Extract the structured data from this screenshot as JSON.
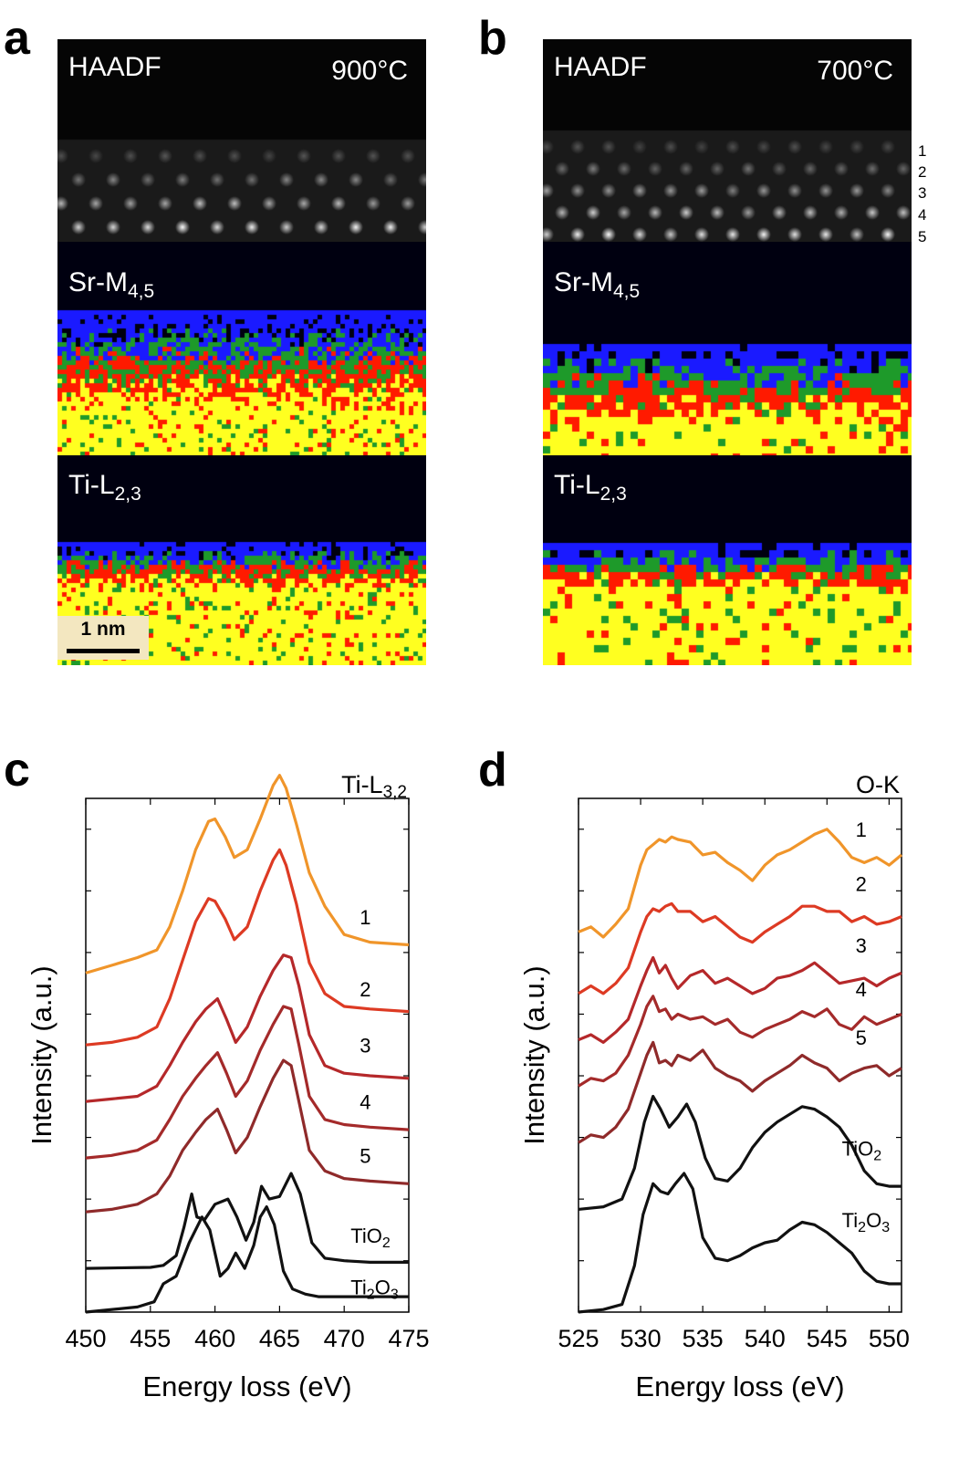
{
  "panels": {
    "a": {
      "letter": "a",
      "imaging_label": "HAADF",
      "temperature": "900°C",
      "sr_label": {
        "base": "Sr-M",
        "sub": "4,5"
      },
      "ti_label": {
        "base": "Ti-L",
        "sub": "2,3"
      },
      "scale_bar": "1 nm"
    },
    "b": {
      "letter": "b",
      "imaging_label": "HAADF",
      "temperature": "700°C",
      "sr_label": {
        "base": "Sr-M",
        "sub": "4,5"
      },
      "ti_label": {
        "base": "Ti-L",
        "sub": "2,3"
      },
      "layer_numbers": [
        "1",
        "2",
        "3",
        "4",
        "5"
      ]
    },
    "c": {
      "letter": "c"
    },
    "d": {
      "letter": "d"
    }
  },
  "colors": {
    "trace_1": "#f0952a",
    "trace_2": "#dd3a23",
    "trace_3": "#b5282a",
    "trace_4": "#a42a2a",
    "trace_5": "#8f2a2a",
    "reference": "#111111",
    "map_blue": "#1a1aff",
    "map_green": "#1e9a2a",
    "map_red": "#ff1a00",
    "map_yellow": "#ffff20"
  },
  "chart_data": [
    {
      "type": "line",
      "panel": "c",
      "title": "Ti-L",
      "title_sub": "3,2",
      "xlabel": "Energy loss (eV)",
      "ylabel": "Intensity (a.u.)",
      "xlim": [
        450,
        475
      ],
      "ylim": [
        0,
        10
      ],
      "xticks": [
        450,
        455,
        460,
        465,
        470,
        475
      ],
      "xtick_labels": [
        "450",
        "455",
        "460",
        "465",
        "470",
        "475"
      ],
      "series": [
        {
          "name": "1",
          "label": "1",
          "color_key": "trace_1",
          "offset": 6.6,
          "label_x": 471.2,
          "label_y": 7.55,
          "x": [
            450,
            452,
            454,
            455.5,
            456.5,
            457.5,
            458.5,
            459.5,
            460,
            460.8,
            461.5,
            462.5,
            463.5,
            464.5,
            465,
            465.5,
            466.3,
            467.3,
            468.5,
            470,
            472,
            475
          ],
          "y": [
            0,
            0.15,
            0.3,
            0.45,
            0.9,
            1.6,
            2.4,
            2.95,
            3.0,
            2.65,
            2.25,
            2.4,
            3.0,
            3.65,
            3.85,
            3.6,
            2.9,
            1.95,
            1.3,
            0.75,
            0.6,
            0.55
          ]
        },
        {
          "name": "2",
          "label": "2",
          "color_key": "trace_2",
          "offset": 5.2,
          "label_x": 471.2,
          "label_y": 6.15,
          "x": [
            450,
            452,
            454,
            455.5,
            456.5,
            457.5,
            458.5,
            459.5,
            460,
            460.8,
            461.5,
            462.5,
            463.5,
            464.5,
            465,
            465.5,
            466.3,
            467.3,
            468.5,
            470,
            472,
            475
          ],
          "y": [
            0,
            0.05,
            0.15,
            0.35,
            0.9,
            1.65,
            2.4,
            2.85,
            2.8,
            2.45,
            2.05,
            2.3,
            3.0,
            3.6,
            3.8,
            3.5,
            2.75,
            1.6,
            1.0,
            0.75,
            0.7,
            0.65
          ]
        },
        {
          "name": "3",
          "label": "3",
          "color_key": "trace_3",
          "offset": 4.1,
          "label_x": 471.2,
          "label_y": 5.05,
          "x": [
            450,
            452,
            454,
            455.5,
            456.5,
            457.5,
            458.5,
            459.3,
            460.2,
            460.9,
            461.6,
            462.5,
            463.5,
            464.5,
            465.3,
            465.9,
            466.5,
            467.3,
            468.5,
            470,
            472,
            475
          ],
          "y": [
            0,
            0.05,
            0.1,
            0.3,
            0.7,
            1.15,
            1.55,
            1.8,
            2.0,
            1.6,
            1.15,
            1.45,
            2.05,
            2.55,
            2.85,
            2.8,
            2.25,
            1.3,
            0.7,
            0.55,
            0.5,
            0.45
          ]
        },
        {
          "name": "4",
          "label": "4",
          "color_key": "trace_4",
          "offset": 3.0,
          "label_x": 471.2,
          "label_y": 3.95,
          "x": [
            450,
            452,
            454,
            455.5,
            456.5,
            457.5,
            458.5,
            459.3,
            460.2,
            460.9,
            461.6,
            462.5,
            463.5,
            464.5,
            465.3,
            465.9,
            466.5,
            467.3,
            468.5,
            470,
            472,
            475
          ],
          "y": [
            0,
            0.05,
            0.15,
            0.35,
            0.75,
            1.2,
            1.55,
            1.8,
            2.05,
            1.65,
            1.2,
            1.5,
            2.1,
            2.6,
            2.95,
            2.9,
            2.2,
            1.2,
            0.75,
            0.65,
            0.6,
            0.55
          ]
        },
        {
          "name": "5",
          "label": "5",
          "color_key": "trace_5",
          "offset": 1.95,
          "label_x": 471.2,
          "label_y": 2.9,
          "x": [
            450,
            452,
            454,
            455.5,
            456.5,
            457.5,
            458.5,
            459.3,
            460.2,
            460.9,
            461.6,
            462.5,
            463.5,
            464.5,
            465.3,
            465.9,
            466.5,
            467.3,
            468.5,
            470,
            472,
            475
          ],
          "y": [
            0,
            0.05,
            0.15,
            0.35,
            0.7,
            1.2,
            1.55,
            1.8,
            2.0,
            1.6,
            1.15,
            1.45,
            2.05,
            2.6,
            2.95,
            2.85,
            2.15,
            1.2,
            0.8,
            0.65,
            0.6,
            0.55
          ]
        },
        {
          "name": "TiO2",
          "label": "TiO",
          "label_sub": "2",
          "color_key": "reference",
          "offset": 0.85,
          "label_x": 470.5,
          "label_y": 1.35,
          "x": [
            450,
            455,
            456,
            457,
            457.6,
            458.2,
            458.6,
            459.2,
            460,
            461,
            461.7,
            462.4,
            463,
            463.6,
            464.2,
            465,
            465.9,
            466.6,
            467.5,
            468.5,
            470,
            472,
            475
          ],
          "y": [
            0,
            0.02,
            0.06,
            0.25,
            0.8,
            1.45,
            1.0,
            0.95,
            1.25,
            1.35,
            1.0,
            0.55,
            0.9,
            1.6,
            1.35,
            1.4,
            1.85,
            1.45,
            0.5,
            0.2,
            0.15,
            0.12,
            0.12
          ]
        },
        {
          "name": "Ti2O3",
          "label": "Ti",
          "label_sub": "2",
          "label_tail": "O",
          "label_sub2": "3",
          "color_key": "reference",
          "offset": 0.0,
          "label_x": 470.5,
          "label_y": 0.35,
          "x": [
            450,
            454,
            455.3,
            456,
            457,
            458,
            459,
            459.6,
            460.4,
            461,
            461.6,
            462.3,
            463,
            463.5,
            464,
            464.6,
            465.3,
            466,
            467,
            468,
            470,
            475
          ],
          "y": [
            0,
            0.1,
            0.2,
            0.55,
            0.7,
            1.35,
            1.85,
            1.6,
            0.7,
            0.85,
            1.15,
            0.85,
            1.3,
            1.85,
            2.05,
            1.7,
            0.8,
            0.45,
            0.35,
            0.3,
            0.3,
            0.3
          ]
        }
      ]
    },
    {
      "type": "line",
      "panel": "d",
      "title": "O-K",
      "xlabel": "Energy loss (eV)",
      "ylabel": "Intensity (a.u.)",
      "xlim": [
        525,
        551
      ],
      "ylim": [
        0,
        10
      ],
      "xticks": [
        525,
        530,
        535,
        540,
        545,
        550
      ],
      "xtick_labels": [
        "525",
        "530",
        "535",
        "540",
        "545",
        "550"
      ],
      "series": [
        {
          "name": "1",
          "label": "1",
          "color_key": "trace_1",
          "offset": 7.4,
          "label_x": 547.3,
          "label_y": 9.25,
          "x": [
            525,
            526,
            527,
            528,
            529,
            530,
            530.5,
            531,
            531.5,
            532,
            532.5,
            533,
            534,
            535,
            536,
            537,
            538,
            539,
            540,
            541,
            542,
            543,
            544,
            545,
            546,
            547,
            548,
            549,
            550,
            551
          ],
          "y": [
            0,
            0.1,
            -0.1,
            0.15,
            0.45,
            1.3,
            1.6,
            1.7,
            1.8,
            1.75,
            1.85,
            1.8,
            1.75,
            1.5,
            1.55,
            1.35,
            1.2,
            1.0,
            1.3,
            1.5,
            1.6,
            1.75,
            1.9,
            2.0,
            1.75,
            1.45,
            1.35,
            1.45,
            1.3,
            1.5
          ]
        },
        {
          "name": "2",
          "label": "2",
          "color_key": "trace_2",
          "offset": 6.2,
          "label_x": 547.3,
          "label_y": 8.2,
          "x": [
            525,
            526,
            527,
            528,
            529,
            530,
            530.5,
            531,
            531.5,
            532,
            532.5,
            533,
            534,
            535,
            536,
            537,
            538,
            539,
            540,
            541,
            542,
            543,
            544,
            545,
            546,
            547,
            548,
            549,
            550,
            551
          ],
          "y": [
            0,
            0.15,
            0.0,
            0.2,
            0.5,
            1.2,
            1.5,
            1.65,
            1.6,
            1.7,
            1.75,
            1.6,
            1.6,
            1.4,
            1.5,
            1.3,
            1.1,
            1.0,
            1.2,
            1.35,
            1.5,
            1.7,
            1.7,
            1.6,
            1.6,
            1.4,
            1.5,
            1.35,
            1.4,
            1.5
          ]
        },
        {
          "name": "3",
          "label": "3",
          "color_key": "trace_3",
          "offset": 5.3,
          "label_x": 547.3,
          "label_y": 7.0,
          "x": [
            525,
            526,
            527,
            528,
            529,
            530,
            530.5,
            531,
            531.5,
            532,
            532.5,
            533,
            534,
            535,
            536,
            537,
            538,
            539,
            540,
            541,
            542,
            543,
            544,
            545,
            546,
            547,
            548,
            549,
            550,
            551
          ],
          "y": [
            0,
            0.1,
            -0.05,
            0.15,
            0.4,
            1.05,
            1.35,
            1.6,
            1.3,
            1.45,
            1.2,
            1.0,
            1.25,
            1.35,
            1.1,
            1.2,
            1.05,
            0.9,
            1.0,
            1.2,
            1.25,
            1.35,
            1.5,
            1.3,
            1.1,
            1.15,
            1.2,
            1.05,
            1.2,
            1.3
          ]
        },
        {
          "name": "4",
          "label": "4",
          "color_key": "trace_4",
          "offset": 4.4,
          "label_x": 547.3,
          "label_y": 6.15,
          "x": [
            525,
            526,
            527,
            528,
            529,
            530,
            530.5,
            531,
            531.5,
            532,
            532.5,
            533,
            534,
            535,
            536,
            537,
            538,
            539,
            540,
            541,
            542,
            543,
            544,
            545,
            546,
            547,
            548,
            549,
            550,
            551
          ],
          "y": [
            0,
            0.15,
            0.1,
            0.25,
            0.6,
            1.2,
            1.55,
            1.75,
            1.45,
            1.5,
            1.3,
            1.4,
            1.3,
            1.35,
            1.2,
            1.3,
            1.05,
            0.95,
            1.1,
            1.2,
            1.3,
            1.45,
            1.35,
            1.5,
            1.2,
            1.1,
            1.35,
            1.2,
            1.3,
            1.4
          ]
        },
        {
          "name": "5",
          "label": "5",
          "color_key": "trace_5",
          "offset": 3.3,
          "label_x": 547.3,
          "label_y": 5.2,
          "x": [
            525,
            526,
            527,
            528,
            529,
            530,
            530.5,
            531,
            531.5,
            532,
            532.5,
            533,
            534,
            535,
            536,
            537,
            538,
            539,
            540,
            541,
            542,
            543,
            544,
            545,
            546,
            547,
            548,
            549,
            550,
            551
          ],
          "y": [
            0,
            0.15,
            0.1,
            0.3,
            0.65,
            1.35,
            1.7,
            1.95,
            1.55,
            1.6,
            1.5,
            1.7,
            1.6,
            1.8,
            1.45,
            1.3,
            1.2,
            1.0,
            1.2,
            1.35,
            1.5,
            1.7,
            1.55,
            1.45,
            1.2,
            1.35,
            1.45,
            1.5,
            1.3,
            1.45
          ]
        },
        {
          "name": "TiO2",
          "label": "TiO",
          "label_sub": "2",
          "color_key": "reference",
          "offset": 2.0,
          "label_x": 546.2,
          "label_y": 3.05,
          "x": [
            525,
            527,
            528.5,
            529.5,
            530.3,
            531,
            531.6,
            532.3,
            533,
            533.7,
            534.4,
            535.2,
            536,
            537,
            538,
            539,
            540,
            541,
            542,
            543,
            544,
            545,
            546,
            547,
            548,
            549,
            550,
            551
          ],
          "y": [
            0,
            0.05,
            0.2,
            0.8,
            1.7,
            2.2,
            1.95,
            1.6,
            1.8,
            2.05,
            1.7,
            1.0,
            0.6,
            0.55,
            0.8,
            1.2,
            1.5,
            1.7,
            1.85,
            2.0,
            1.95,
            1.8,
            1.6,
            1.25,
            0.75,
            0.5,
            0.45,
            0.45
          ]
        },
        {
          "name": "Ti2O3",
          "label": "Ti",
          "label_sub": "2",
          "label_tail": "O",
          "label_sub2": "3",
          "color_key": "reference",
          "offset": 0.0,
          "label_x": 546.2,
          "label_y": 1.65,
          "x": [
            525,
            527,
            528.5,
            529.5,
            530.2,
            531,
            531.6,
            532.2,
            532.8,
            533.5,
            534.2,
            535,
            536,
            537,
            538,
            539,
            540,
            541,
            542,
            543,
            544,
            545,
            546,
            547,
            548,
            549,
            550,
            551
          ],
          "y": [
            0,
            0.05,
            0.15,
            0.9,
            1.9,
            2.5,
            2.35,
            2.3,
            2.5,
            2.7,
            2.4,
            1.45,
            1.05,
            1.0,
            1.1,
            1.25,
            1.35,
            1.4,
            1.6,
            1.75,
            1.7,
            1.55,
            1.35,
            1.15,
            0.8,
            0.6,
            0.55,
            0.55
          ]
        }
      ]
    }
  ]
}
